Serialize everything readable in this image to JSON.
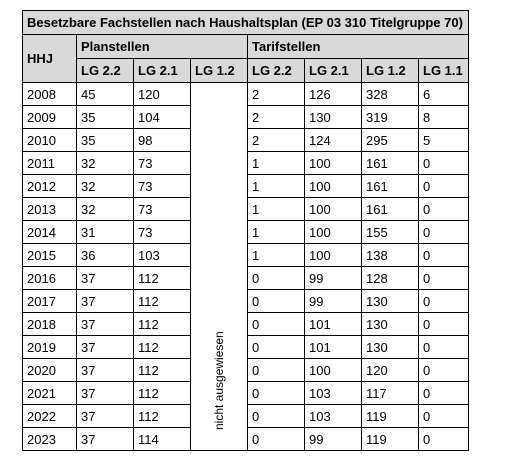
{
  "title": "Besetzbare Fachstellen nach Haushaltsplan (EP 03 310 Titelgruppe 70)",
  "headers": {
    "year": "HHJ",
    "group_plan": "Planstellen",
    "group_tarif": "Tarifstellen",
    "plan_cols": [
      "LG 2.2",
      "LG 2.1",
      "LG 1.2"
    ],
    "tarif_cols": [
      "LG 2.2",
      "LG 2.1",
      "LG 1.2",
      "LG 1.1"
    ]
  },
  "note": "nicht ausgewiesen",
  "rows": [
    {
      "year": "2008",
      "plan": [
        "45",
        "120"
      ],
      "tarif": [
        "2",
        "126",
        "328",
        "6"
      ]
    },
    {
      "year": "2009",
      "plan": [
        "35",
        "104"
      ],
      "tarif": [
        "2",
        "130",
        "319",
        "8"
      ]
    },
    {
      "year": "2010",
      "plan": [
        "35",
        "98"
      ],
      "tarif": [
        "2",
        "124",
        "295",
        "5"
      ]
    },
    {
      "year": "2011",
      "plan": [
        "32",
        "73"
      ],
      "tarif": [
        "1",
        "100",
        "161",
        "0"
      ]
    },
    {
      "year": "2012",
      "plan": [
        "32",
        "73"
      ],
      "tarif": [
        "1",
        "100",
        "161",
        "0"
      ]
    },
    {
      "year": "2013",
      "plan": [
        "32",
        "73"
      ],
      "tarif": [
        "1",
        "100",
        "161",
        "0"
      ]
    },
    {
      "year": "2014",
      "plan": [
        "31",
        "73"
      ],
      "tarif": [
        "1",
        "100",
        "155",
        "0"
      ]
    },
    {
      "year": "2015",
      "plan": [
        "36",
        "103"
      ],
      "tarif": [
        "1",
        "100",
        "138",
        "0"
      ]
    },
    {
      "year": "2016",
      "plan": [
        "37",
        "112"
      ],
      "tarif": [
        "0",
        "99",
        "128",
        "0"
      ]
    },
    {
      "year": "2017",
      "plan": [
        "37",
        "112"
      ],
      "tarif": [
        "0",
        "99",
        "130",
        "0"
      ]
    },
    {
      "year": "2018",
      "plan": [
        "37",
        "112"
      ],
      "tarif": [
        "0",
        "101",
        "130",
        "0"
      ]
    },
    {
      "year": "2019",
      "plan": [
        "37",
        "112"
      ],
      "tarif": [
        "0",
        "101",
        "130",
        "0"
      ]
    },
    {
      "year": "2020",
      "plan": [
        "37",
        "112"
      ],
      "tarif": [
        "0",
        "100",
        "120",
        "0"
      ]
    },
    {
      "year": "2021",
      "plan": [
        "37",
        "112"
      ],
      "tarif": [
        "0",
        "103",
        "117",
        "0"
      ]
    },
    {
      "year": "2022",
      "plan": [
        "37",
        "112"
      ],
      "tarif": [
        "0",
        "103",
        "119",
        "0"
      ]
    },
    {
      "year": "2023",
      "plan": [
        "37",
        "114"
      ],
      "tarif": [
        "0",
        "99",
        "119",
        "0"
      ]
    }
  ]
}
